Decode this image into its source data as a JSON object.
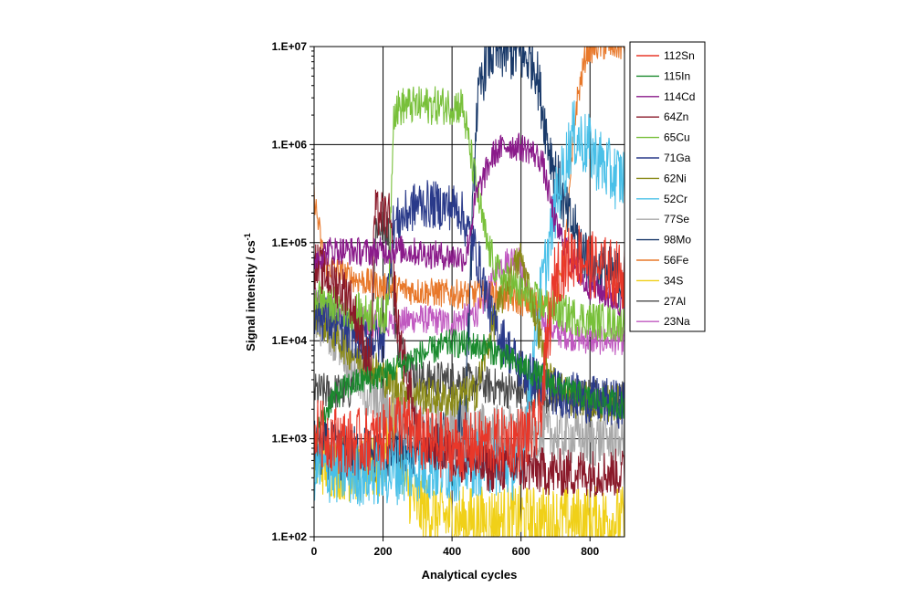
{
  "chart_data": {
    "type": "line",
    "title": "",
    "xlabel": "Analytical cycles",
    "ylabel": "Signal intensity / cs",
    "ylabel_sup": "-1",
    "xlim": [
      0,
      900
    ],
    "ylim": [
      100,
      10000000
    ],
    "y_scale": "log",
    "x_ticks": [
      0,
      200,
      400,
      600,
      800
    ],
    "y_ticks": [
      100,
      1000,
      10000,
      100000,
      1000000,
      10000000
    ],
    "y_tick_labels": [
      "1.E+02",
      "1.E+03",
      "1.E+04",
      "1.E+05",
      "1.E+06",
      "1.E+07"
    ],
    "grid": true,
    "legend_position": "right",
    "series": [
      {
        "name": "112Sn",
        "color": "#e8382a",
        "noise": 0.35,
        "points": [
          [
            0,
            1200
          ],
          [
            100,
            900
          ],
          [
            200,
            1000
          ],
          [
            240,
            1500
          ],
          [
            300,
            1000
          ],
          [
            400,
            800
          ],
          [
            500,
            900
          ],
          [
            600,
            1000
          ],
          [
            650,
            1200
          ],
          [
            700,
            50000
          ],
          [
            760,
            80000
          ],
          [
            800,
            60000
          ],
          [
            900,
            45000
          ]
        ]
      },
      {
        "name": "115In",
        "color": "#1a8a2e",
        "noise": 0.15,
        "points": [
          [
            0,
            1000
          ],
          [
            50,
            2500
          ],
          [
            100,
            3500
          ],
          [
            200,
            4500
          ],
          [
            300,
            7000
          ],
          [
            400,
            9500
          ],
          [
            500,
            8500
          ],
          [
            600,
            5500
          ],
          [
            700,
            3500
          ],
          [
            800,
            2500
          ],
          [
            900,
            2200
          ]
        ]
      },
      {
        "name": "114Cd",
        "color": "#8a1a8a",
        "noise": 0.15,
        "points": [
          [
            0,
            70000
          ],
          [
            50,
            85000
          ],
          [
            150,
            80000
          ],
          [
            250,
            85000
          ],
          [
            350,
            75000
          ],
          [
            440,
            70000
          ],
          [
            470,
            300000
          ],
          [
            520,
            800000
          ],
          [
            560,
            1000000
          ],
          [
            620,
            900000
          ],
          [
            660,
            700000
          ],
          [
            700,
            150000
          ],
          [
            780,
            40000
          ],
          [
            900,
            23000
          ]
        ]
      },
      {
        "name": "64Zn",
        "color": "#8a1a2a",
        "noise": 0.25,
        "points": [
          [
            0,
            60000
          ],
          [
            100,
            30000
          ],
          [
            165,
            5000
          ],
          [
            175,
            200000
          ],
          [
            220,
            180000
          ],
          [
            240,
            15000
          ],
          [
            280,
            3000
          ],
          [
            300,
            1000
          ],
          [
            400,
            700
          ],
          [
            500,
            500
          ],
          [
            600,
            500
          ],
          [
            700,
            450
          ],
          [
            800,
            450
          ],
          [
            900,
            450
          ]
        ]
      },
      {
        "name": "65Cu",
        "color": "#78c03a",
        "noise": 0.2,
        "points": [
          [
            0,
            30000
          ],
          [
            100,
            20000
          ],
          [
            200,
            18000
          ],
          [
            215,
            20000
          ],
          [
            230,
            2200000
          ],
          [
            260,
            2500000
          ],
          [
            430,
            2500000
          ],
          [
            460,
            600000
          ],
          [
            500,
            100000
          ],
          [
            530,
            50000
          ],
          [
            600,
            30000
          ],
          [
            700,
            20000
          ],
          [
            800,
            16000
          ],
          [
            900,
            15000
          ]
        ]
      },
      {
        "name": "71Ga",
        "color": "#2a3a8a",
        "noise": 0.25,
        "points": [
          [
            0,
            20000
          ],
          [
            100,
            12000
          ],
          [
            180,
            10000
          ],
          [
            200,
            9000
          ],
          [
            230,
            150000
          ],
          [
            300,
            250000
          ],
          [
            420,
            230000
          ],
          [
            470,
            80000
          ],
          [
            520,
            15000
          ],
          [
            600,
            5000
          ],
          [
            700,
            3000
          ],
          [
            800,
            2500
          ],
          [
            900,
            2200
          ]
        ]
      },
      {
        "name": "62Ni",
        "color": "#8a8a18",
        "noise": 0.2,
        "points": [
          [
            0,
            20000
          ],
          [
            100,
            8000
          ],
          [
            180,
            5000
          ],
          [
            230,
            3500
          ],
          [
            300,
            2800
          ],
          [
            400,
            2500
          ],
          [
            470,
            3000
          ],
          [
            520,
            15000
          ],
          [
            560,
            40000
          ],
          [
            600,
            70000
          ],
          [
            640,
            20000
          ],
          [
            680,
            4000
          ],
          [
            750,
            2500
          ],
          [
            900,
            2200
          ]
        ]
      },
      {
        "name": "52Cr",
        "color": "#4ac0e8",
        "noise": 0.35,
        "points": [
          [
            0,
            500
          ],
          [
            100,
            450
          ],
          [
            200,
            450
          ],
          [
            300,
            500
          ],
          [
            400,
            500
          ],
          [
            500,
            600
          ],
          [
            600,
            500
          ],
          [
            650,
            20000
          ],
          [
            700,
            250000
          ],
          [
            750,
            1300000
          ],
          [
            800,
            900000
          ],
          [
            860,
            500000
          ],
          [
            900,
            450000
          ]
        ]
      },
      {
        "name": "77Se",
        "color": "#a8a8a8",
        "noise": 0.3,
        "points": [
          [
            0,
            20000
          ],
          [
            80,
            10000
          ],
          [
            150,
            3000
          ],
          [
            200,
            2000
          ],
          [
            300,
            1500
          ],
          [
            400,
            1300
          ],
          [
            500,
            1200
          ],
          [
            600,
            1100
          ],
          [
            700,
            1100
          ],
          [
            800,
            1000
          ],
          [
            900,
            1000
          ]
        ]
      },
      {
        "name": "98Mo",
        "color": "#1a3a6a",
        "noise": 0.3,
        "points": [
          [
            0,
            800
          ],
          [
            100,
            700
          ],
          [
            200,
            700
          ],
          [
            300,
            800
          ],
          [
            400,
            1000
          ],
          [
            440,
            2000
          ],
          [
            470,
            2000000
          ],
          [
            500,
            8000000
          ],
          [
            560,
            9000000
          ],
          [
            640,
            7000000
          ],
          [
            680,
            1000000
          ],
          [
            730,
            200000
          ],
          [
            800,
            60000
          ],
          [
            900,
            40000
          ]
        ]
      },
      {
        "name": "56Fe",
        "color": "#e8782a",
        "noise": 0.15,
        "points": [
          [
            0,
            300000
          ],
          [
            30,
            60000
          ],
          [
            100,
            45000
          ],
          [
            200,
            35000
          ],
          [
            300,
            32000
          ],
          [
            400,
            30000
          ],
          [
            500,
            30000
          ],
          [
            600,
            25000
          ],
          [
            700,
            22000
          ],
          [
            730,
            100000
          ],
          [
            760,
            2500000
          ],
          [
            790,
            9000000
          ],
          [
            820,
            10000000
          ],
          [
            900,
            10000000
          ]
        ]
      },
      {
        "name": "34S",
        "color": "#f0d018",
        "noise": 0.35,
        "points": [
          [
            0,
            600
          ],
          [
            100,
            500
          ],
          [
            200,
            500
          ],
          [
            240,
            3000
          ],
          [
            260,
            400
          ],
          [
            300,
            200
          ],
          [
            400,
            150
          ],
          [
            500,
            150
          ],
          [
            600,
            150
          ],
          [
            700,
            150
          ],
          [
            800,
            150
          ],
          [
            900,
            150
          ]
        ]
      },
      {
        "name": "27Al",
        "color": "#4a4a4a",
        "noise": 0.2,
        "points": [
          [
            0,
            3000
          ],
          [
            100,
            3000
          ],
          [
            165,
            10000
          ],
          [
            180,
            150000
          ],
          [
            215,
            140000
          ],
          [
            240,
            10000
          ],
          [
            300,
            4000
          ],
          [
            400,
            4000
          ],
          [
            500,
            3500
          ],
          [
            600,
            3000
          ],
          [
            700,
            2800
          ],
          [
            800,
            2600
          ],
          [
            900,
            2500
          ]
        ]
      },
      {
        "name": "23Na",
        "color": "#c058c0",
        "noise": 0.15,
        "points": [
          [
            0,
            25000
          ],
          [
            100,
            17000
          ],
          [
            200,
            14000
          ],
          [
            300,
            17000
          ],
          [
            400,
            15000
          ],
          [
            480,
            20000
          ],
          [
            540,
            60000
          ],
          [
            590,
            75000
          ],
          [
            640,
            20000
          ],
          [
            700,
            12000
          ],
          [
            800,
            10000
          ],
          [
            900,
            10000
          ]
        ]
      }
    ]
  }
}
